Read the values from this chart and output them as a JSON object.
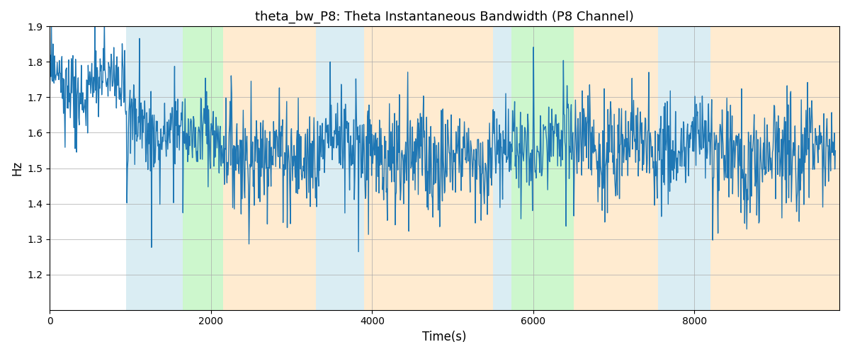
{
  "title": "theta_bw_P8: Theta Instantaneous Bandwidth (P8 Channel)",
  "xlabel": "Time(s)",
  "ylabel": "Hz",
  "ylim": [
    1.1,
    1.9
  ],
  "xlim": [
    0,
    9800
  ],
  "yticks": [
    1.2,
    1.3,
    1.4,
    1.5,
    1.6,
    1.7,
    1.8,
    1.9
  ],
  "line_color": "#1f77b4",
  "line_width": 1.0,
  "bg_color": "#ffffff",
  "grid_color": "#aaaaaa",
  "bands": [
    {
      "xstart": 950,
      "xend": 1650,
      "color": "#add8e6",
      "alpha": 0.45
    },
    {
      "xstart": 1650,
      "xend": 2150,
      "color": "#90ee90",
      "alpha": 0.45
    },
    {
      "xstart": 2150,
      "xend": 3300,
      "color": "#ffdcaa",
      "alpha": 0.55
    },
    {
      "xstart": 3300,
      "xend": 3900,
      "color": "#add8e6",
      "alpha": 0.45
    },
    {
      "xstart": 3900,
      "xend": 5500,
      "color": "#ffdcaa",
      "alpha": 0.55
    },
    {
      "xstart": 5500,
      "xend": 5730,
      "color": "#add8e6",
      "alpha": 0.45
    },
    {
      "xstart": 5730,
      "xend": 6500,
      "color": "#90ee90",
      "alpha": 0.45
    },
    {
      "xstart": 6500,
      "xend": 7550,
      "color": "#ffdcaa",
      "alpha": 0.55
    },
    {
      "xstart": 7550,
      "xend": 8200,
      "color": "#add8e6",
      "alpha": 0.45
    },
    {
      "xstart": 8200,
      "xend": 9800,
      "color": "#ffdcaa",
      "alpha": 0.55
    }
  ],
  "n_points": 1500,
  "t_end": 9750,
  "seed": 7
}
